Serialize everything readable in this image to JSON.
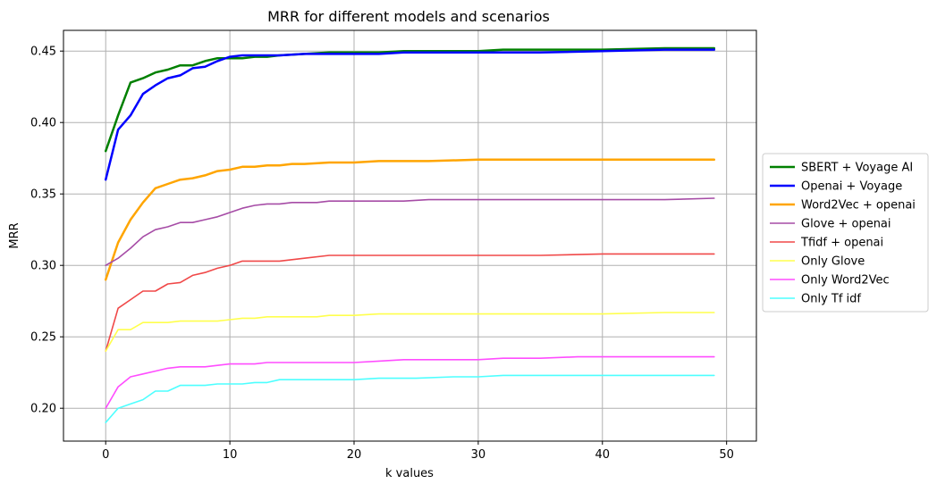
{
  "chart_data": {
    "type": "line",
    "title": "MRR for different models and scenarios",
    "xlabel": "k values",
    "ylabel": "MRR",
    "xlim": [
      -3.4,
      52.4
    ],
    "ylim": [
      0.177,
      0.4645
    ],
    "x_ticks": [
      0,
      10,
      20,
      30,
      40,
      50
    ],
    "y_ticks": [
      0.2,
      0.25,
      0.3,
      0.35,
      0.4,
      0.45
    ],
    "x_tick_labels": [
      "0",
      "10",
      "20",
      "30",
      "40",
      "50"
    ],
    "y_tick_labels": [
      "0.20",
      "0.25",
      "0.30",
      "0.35",
      "0.40",
      "0.45"
    ],
    "grid": true,
    "legend_position": "right, outside plot",
    "series": [
      {
        "name": "SBERT + Voyage AI",
        "color": "#008000",
        "width": 2.5,
        "points": [
          [
            0,
            0.38
          ],
          [
            1,
            0.405
          ],
          [
            2,
            0.428
          ],
          [
            3,
            0.431
          ],
          [
            4,
            0.435
          ],
          [
            5,
            0.437
          ],
          [
            6,
            0.44
          ],
          [
            7,
            0.44
          ],
          [
            8,
            0.443
          ],
          [
            9,
            0.445
          ],
          [
            10,
            0.445
          ],
          [
            11,
            0.445
          ],
          [
            12,
            0.446
          ],
          [
            13,
            0.446
          ],
          [
            14,
            0.447
          ],
          [
            16,
            0.448
          ],
          [
            18,
            0.449
          ],
          [
            20,
            0.449
          ],
          [
            22,
            0.449
          ],
          [
            24,
            0.45
          ],
          [
            26,
            0.45
          ],
          [
            28,
            0.45
          ],
          [
            30,
            0.45
          ],
          [
            32,
            0.451
          ],
          [
            35,
            0.451
          ],
          [
            40,
            0.451
          ],
          [
            45,
            0.452
          ],
          [
            49,
            0.452
          ]
        ]
      },
      {
        "name": "Openai + Voyage",
        "color": "#0000FF",
        "width": 2.5,
        "points": [
          [
            0,
            0.36
          ],
          [
            1,
            0.395
          ],
          [
            2,
            0.405
          ],
          [
            3,
            0.42
          ],
          [
            4,
            0.426
          ],
          [
            5,
            0.431
          ],
          [
            6,
            0.433
          ],
          [
            7,
            0.438
          ],
          [
            8,
            0.439
          ],
          [
            9,
            0.443
          ],
          [
            10,
            0.446
          ],
          [
            11,
            0.447
          ],
          [
            12,
            0.447
          ],
          [
            13,
            0.447
          ],
          [
            14,
            0.447
          ],
          [
            16,
            0.448
          ],
          [
            18,
            0.448
          ],
          [
            20,
            0.448
          ],
          [
            22,
            0.448
          ],
          [
            24,
            0.449
          ],
          [
            26,
            0.449
          ],
          [
            28,
            0.449
          ],
          [
            30,
            0.449
          ],
          [
            32,
            0.449
          ],
          [
            35,
            0.449
          ],
          [
            40,
            0.45
          ],
          [
            45,
            0.451
          ],
          [
            49,
            0.451
          ]
        ]
      },
      {
        "name": "Word2Vec + openai",
        "color": "#FFA500",
        "width": 2.5,
        "points": [
          [
            0,
            0.29
          ],
          [
            1,
            0.316
          ],
          [
            2,
            0.332
          ],
          [
            3,
            0.344
          ],
          [
            4,
            0.354
          ],
          [
            5,
            0.357
          ],
          [
            6,
            0.36
          ],
          [
            7,
            0.361
          ],
          [
            8,
            0.363
          ],
          [
            9,
            0.366
          ],
          [
            10,
            0.367
          ],
          [
            11,
            0.369
          ],
          [
            12,
            0.369
          ],
          [
            13,
            0.37
          ],
          [
            14,
            0.37
          ],
          [
            15,
            0.371
          ],
          [
            16,
            0.371
          ],
          [
            18,
            0.372
          ],
          [
            20,
            0.372
          ],
          [
            22,
            0.373
          ],
          [
            26,
            0.373
          ],
          [
            30,
            0.374
          ],
          [
            35,
            0.374
          ],
          [
            40,
            0.374
          ],
          [
            45,
            0.374
          ],
          [
            49,
            0.374
          ]
        ]
      },
      {
        "name": "Glove + openai",
        "color": "#A64CA6",
        "width": 1.6,
        "points": [
          [
            0,
            0.3
          ],
          [
            1,
            0.305
          ],
          [
            2,
            0.312
          ],
          [
            3,
            0.32
          ],
          [
            4,
            0.325
          ],
          [
            5,
            0.327
          ],
          [
            6,
            0.33
          ],
          [
            7,
            0.33
          ],
          [
            8,
            0.332
          ],
          [
            9,
            0.334
          ],
          [
            10,
            0.337
          ],
          [
            11,
            0.34
          ],
          [
            12,
            0.342
          ],
          [
            13,
            0.343
          ],
          [
            14,
            0.343
          ],
          [
            15,
            0.344
          ],
          [
            17,
            0.344
          ],
          [
            18,
            0.345
          ],
          [
            20,
            0.345
          ],
          [
            24,
            0.345
          ],
          [
            26,
            0.346
          ],
          [
            30,
            0.346
          ],
          [
            35,
            0.346
          ],
          [
            40,
            0.346
          ],
          [
            45,
            0.346
          ],
          [
            49,
            0.347
          ]
        ]
      },
      {
        "name": "Tfidf + openai",
        "color": "#F04848",
        "width": 1.6,
        "points": [
          [
            0,
            0.24
          ],
          [
            1,
            0.27
          ],
          [
            2,
            0.276
          ],
          [
            3,
            0.282
          ],
          [
            4,
            0.282
          ],
          [
            5,
            0.287
          ],
          [
            6,
            0.288
          ],
          [
            7,
            0.293
          ],
          [
            8,
            0.295
          ],
          [
            9,
            0.298
          ],
          [
            10,
            0.3
          ],
          [
            11,
            0.303
          ],
          [
            12,
            0.303
          ],
          [
            14,
            0.303
          ],
          [
            16,
            0.305
          ],
          [
            18,
            0.307
          ],
          [
            20,
            0.307
          ],
          [
            22,
            0.307
          ],
          [
            24,
            0.307
          ],
          [
            30,
            0.307
          ],
          [
            35,
            0.307
          ],
          [
            40,
            0.308
          ],
          [
            45,
            0.308
          ],
          [
            49,
            0.308
          ]
        ]
      },
      {
        "name": "Only Glove",
        "color": "#FFFF4D",
        "width": 1.6,
        "points": [
          [
            0,
            0.24
          ],
          [
            1,
            0.255
          ],
          [
            2,
            0.255
          ],
          [
            3,
            0.26
          ],
          [
            4,
            0.26
          ],
          [
            5,
            0.26
          ],
          [
            6,
            0.261
          ],
          [
            7,
            0.261
          ],
          [
            8,
            0.261
          ],
          [
            9,
            0.261
          ],
          [
            10,
            0.262
          ],
          [
            11,
            0.263
          ],
          [
            12,
            0.263
          ],
          [
            13,
            0.264
          ],
          [
            15,
            0.264
          ],
          [
            17,
            0.264
          ],
          [
            18,
            0.265
          ],
          [
            20,
            0.265
          ],
          [
            22,
            0.266
          ],
          [
            30,
            0.266
          ],
          [
            40,
            0.266
          ],
          [
            45,
            0.267
          ],
          [
            49,
            0.267
          ]
        ]
      },
      {
        "name": "Only Word2Vec",
        "color": "#FF4DFF",
        "width": 1.6,
        "points": [
          [
            0,
            0.2
          ],
          [
            1,
            0.215
          ],
          [
            2,
            0.222
          ],
          [
            3,
            0.224
          ],
          [
            4,
            0.226
          ],
          [
            5,
            0.228
          ],
          [
            6,
            0.229
          ],
          [
            7,
            0.229
          ],
          [
            8,
            0.229
          ],
          [
            9,
            0.23
          ],
          [
            10,
            0.231
          ],
          [
            11,
            0.231
          ],
          [
            12,
            0.231
          ],
          [
            13,
            0.232
          ],
          [
            15,
            0.232
          ],
          [
            16,
            0.232
          ],
          [
            20,
            0.232
          ],
          [
            22,
            0.233
          ],
          [
            24,
            0.234
          ],
          [
            30,
            0.234
          ],
          [
            32,
            0.235
          ],
          [
            35,
            0.235
          ],
          [
            38,
            0.236
          ],
          [
            40,
            0.236
          ],
          [
            45,
            0.236
          ],
          [
            49,
            0.236
          ]
        ]
      },
      {
        "name": "Only Tf idf",
        "color": "#4DFFFF",
        "width": 1.6,
        "points": [
          [
            0,
            0.19
          ],
          [
            1,
            0.2
          ],
          [
            2,
            0.203
          ],
          [
            3,
            0.206
          ],
          [
            4,
            0.212
          ],
          [
            5,
            0.212
          ],
          [
            6,
            0.216
          ],
          [
            7,
            0.216
          ],
          [
            8,
            0.216
          ],
          [
            9,
            0.217
          ],
          [
            10,
            0.217
          ],
          [
            11,
            0.217
          ],
          [
            12,
            0.218
          ],
          [
            13,
            0.218
          ],
          [
            14,
            0.22
          ],
          [
            16,
            0.22
          ],
          [
            20,
            0.22
          ],
          [
            22,
            0.221
          ],
          [
            25,
            0.221
          ],
          [
            28,
            0.222
          ],
          [
            30,
            0.222
          ],
          [
            32,
            0.223
          ],
          [
            40,
            0.223
          ],
          [
            45,
            0.223
          ],
          [
            49,
            0.223
          ]
        ]
      }
    ]
  }
}
